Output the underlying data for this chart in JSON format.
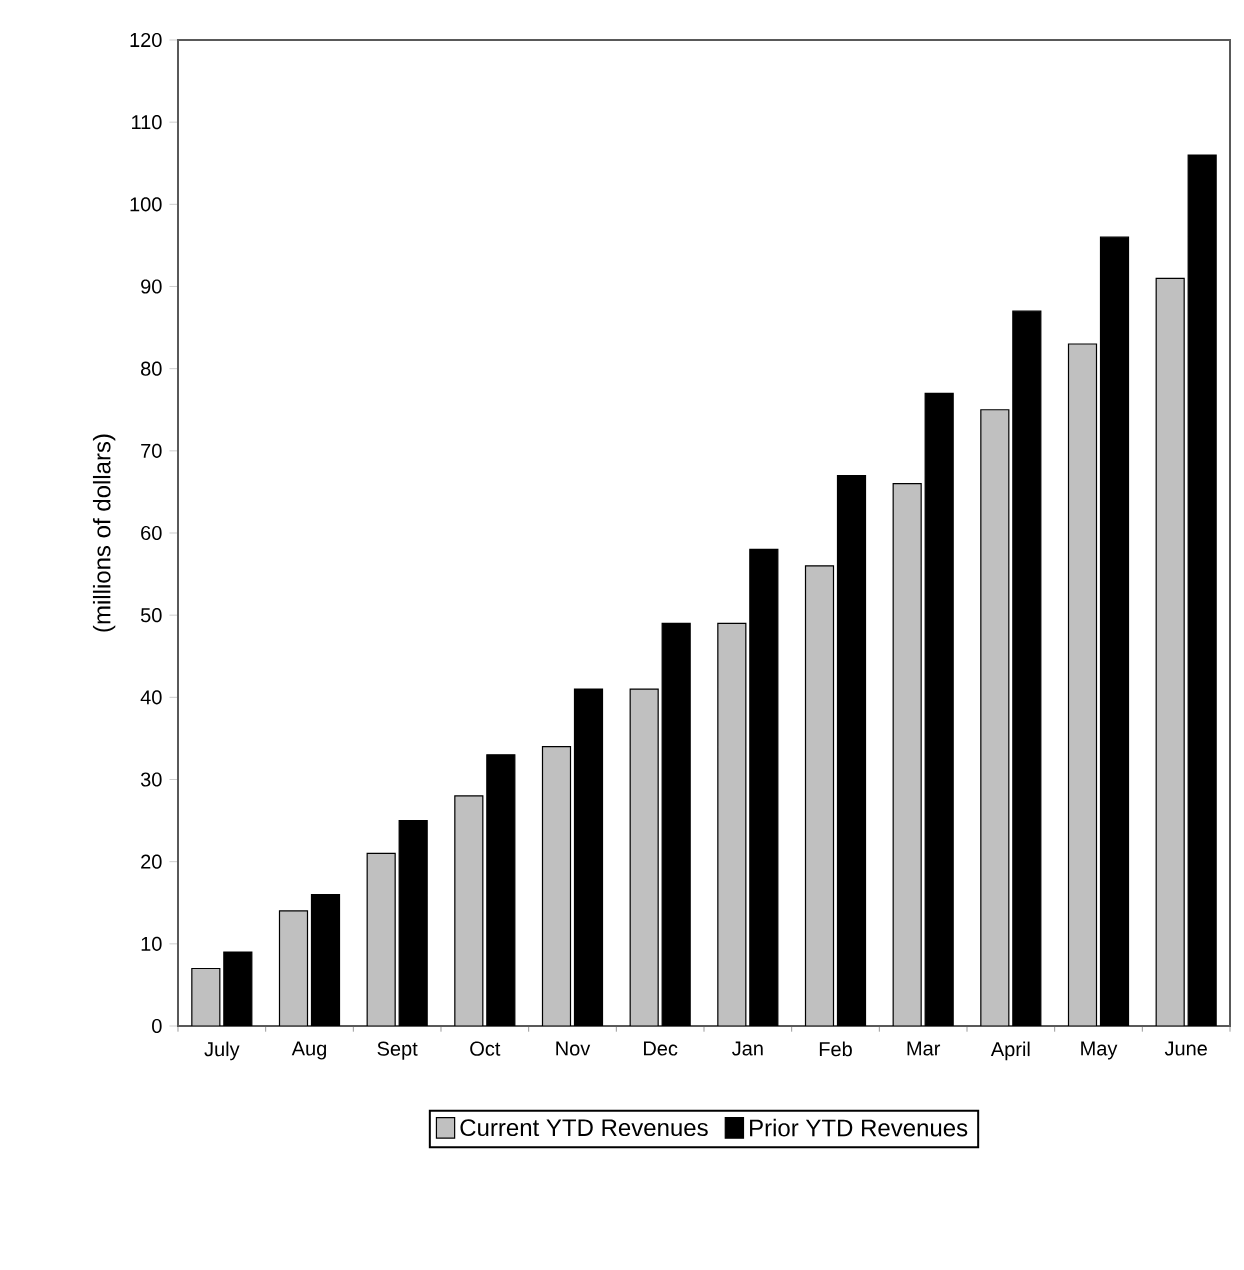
{
  "chart_data": {
    "type": "bar",
    "ylabel": "(millions of dollars)",
    "categories": [
      "July",
      "Aug",
      "Sept",
      "Oct",
      "Nov",
      "Dec",
      "Jan",
      "Feb",
      "Mar",
      "April",
      "May",
      "June"
    ],
    "series": [
      {
        "name": "Current YTD Revenues",
        "color": "#c0c0c0",
        "values": [
          7,
          14,
          21,
          28,
          34,
          41,
          49,
          56,
          66,
          75,
          83,
          91
        ]
      },
      {
        "name": "Prior YTD Revenues",
        "color": "#000000",
        "values": [
          9,
          16,
          25,
          33,
          41,
          49,
          58,
          67,
          77,
          87,
          96,
          106
        ]
      }
    ],
    "ylim": [
      0,
      120
    ],
    "yticks": [
      0,
      10,
      20,
      30,
      40,
      50,
      60,
      70,
      80,
      90,
      100,
      110,
      120
    ],
    "grid": false,
    "legend": "bottom"
  }
}
